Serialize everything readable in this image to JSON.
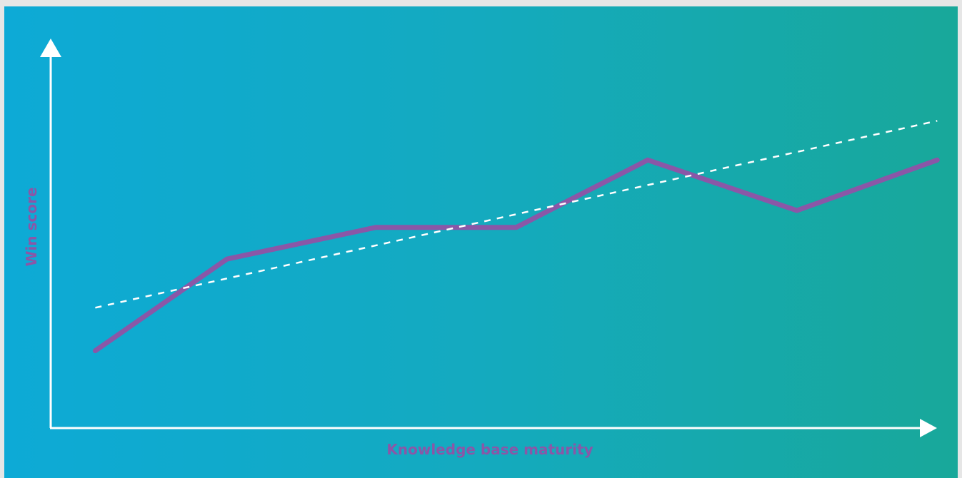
{
  "chart_data": {
    "type": "line",
    "title": "",
    "xlabel": "Knowledge base maturity",
    "ylabel": "Win score",
    "xlim": [
      0,
      10
    ],
    "ylim": [
      0,
      10
    ],
    "grid": false,
    "legend": "none",
    "series": [
      {
        "role": "data",
        "color": "#8a57a7",
        "x": [
          0.5,
          2,
          3.7,
          5.3,
          6.8,
          8.5,
          10.1
        ],
        "y": [
          2.05,
          4.5,
          5.35,
          5.35,
          7.15,
          5.8,
          7.15
        ]
      },
      {
        "role": "trend",
        "style": "dashed",
        "color": "#ffffff",
        "x": [
          0.5,
          10.1
        ],
        "y": [
          3.2,
          8.2
        ]
      }
    ]
  }
}
